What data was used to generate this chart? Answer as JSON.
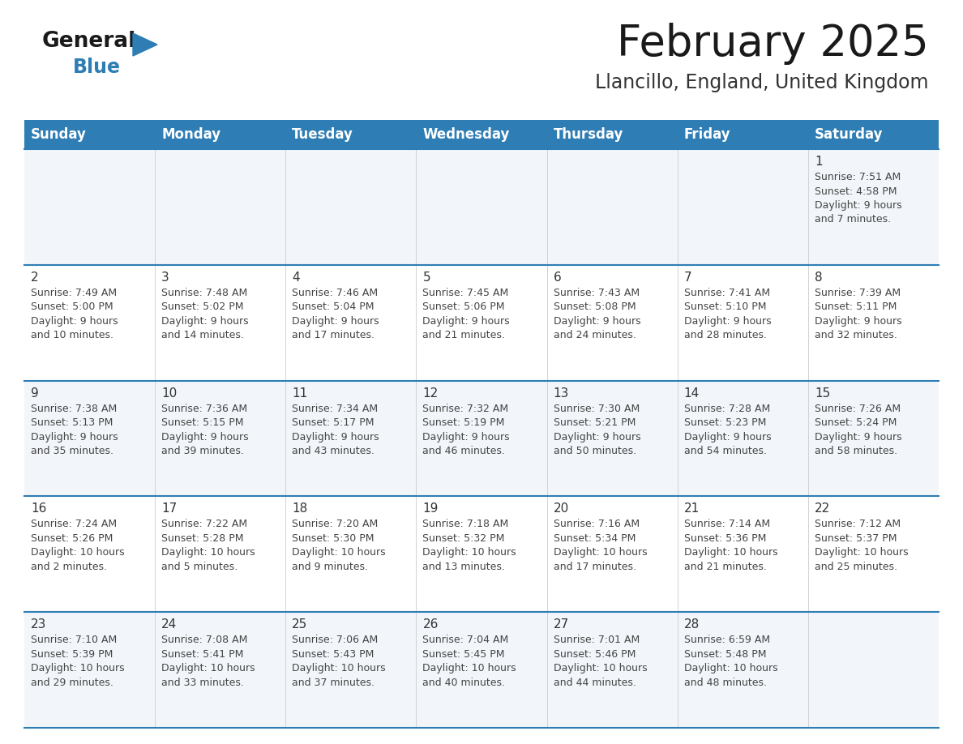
{
  "title": "February 2025",
  "subtitle": "Llancillo, England, United Kingdom",
  "days_of_week": [
    "Sunday",
    "Monday",
    "Tuesday",
    "Wednesday",
    "Thursday",
    "Friday",
    "Saturday"
  ],
  "header_bg": "#2e7db5",
  "header_text": "#ffffff",
  "bg_color": "#ffffff",
  "row_colors": [
    "#f2f6fa",
    "#ffffff",
    "#f2f6fa",
    "#ffffff",
    "#f2f6fa"
  ],
  "cell_text_color": "#444444",
  "day_num_color": "#333333",
  "separator_color": "#2e7db5",
  "calendar_data": [
    [
      {
        "day": null
      },
      {
        "day": null
      },
      {
        "day": null
      },
      {
        "day": null
      },
      {
        "day": null
      },
      {
        "day": null
      },
      {
        "day": 1,
        "sunrise": "7:51 AM",
        "sunset": "4:58 PM",
        "daylight": "9 hours and 7 minutes."
      }
    ],
    [
      {
        "day": 2,
        "sunrise": "7:49 AM",
        "sunset": "5:00 PM",
        "daylight": "9 hours and 10 minutes."
      },
      {
        "day": 3,
        "sunrise": "7:48 AM",
        "sunset": "5:02 PM",
        "daylight": "9 hours and 14 minutes."
      },
      {
        "day": 4,
        "sunrise": "7:46 AM",
        "sunset": "5:04 PM",
        "daylight": "9 hours and 17 minutes."
      },
      {
        "day": 5,
        "sunrise": "7:45 AM",
        "sunset": "5:06 PM",
        "daylight": "9 hours and 21 minutes."
      },
      {
        "day": 6,
        "sunrise": "7:43 AM",
        "sunset": "5:08 PM",
        "daylight": "9 hours and 24 minutes."
      },
      {
        "day": 7,
        "sunrise": "7:41 AM",
        "sunset": "5:10 PM",
        "daylight": "9 hours and 28 minutes."
      },
      {
        "day": 8,
        "sunrise": "7:39 AM",
        "sunset": "5:11 PM",
        "daylight": "9 hours and 32 minutes."
      }
    ],
    [
      {
        "day": 9,
        "sunrise": "7:38 AM",
        "sunset": "5:13 PM",
        "daylight": "9 hours and 35 minutes."
      },
      {
        "day": 10,
        "sunrise": "7:36 AM",
        "sunset": "5:15 PM",
        "daylight": "9 hours and 39 minutes."
      },
      {
        "day": 11,
        "sunrise": "7:34 AM",
        "sunset": "5:17 PM",
        "daylight": "9 hours and 43 minutes."
      },
      {
        "day": 12,
        "sunrise": "7:32 AM",
        "sunset": "5:19 PM",
        "daylight": "9 hours and 46 minutes."
      },
      {
        "day": 13,
        "sunrise": "7:30 AM",
        "sunset": "5:21 PM",
        "daylight": "9 hours and 50 minutes."
      },
      {
        "day": 14,
        "sunrise": "7:28 AM",
        "sunset": "5:23 PM",
        "daylight": "9 hours and 54 minutes."
      },
      {
        "day": 15,
        "sunrise": "7:26 AM",
        "sunset": "5:24 PM",
        "daylight": "9 hours and 58 minutes."
      }
    ],
    [
      {
        "day": 16,
        "sunrise": "7:24 AM",
        "sunset": "5:26 PM",
        "daylight": "10 hours and 2 minutes."
      },
      {
        "day": 17,
        "sunrise": "7:22 AM",
        "sunset": "5:28 PM",
        "daylight": "10 hours and 5 minutes."
      },
      {
        "day": 18,
        "sunrise": "7:20 AM",
        "sunset": "5:30 PM",
        "daylight": "10 hours and 9 minutes."
      },
      {
        "day": 19,
        "sunrise": "7:18 AM",
        "sunset": "5:32 PM",
        "daylight": "10 hours and 13 minutes."
      },
      {
        "day": 20,
        "sunrise": "7:16 AM",
        "sunset": "5:34 PM",
        "daylight": "10 hours and 17 minutes."
      },
      {
        "day": 21,
        "sunrise": "7:14 AM",
        "sunset": "5:36 PM",
        "daylight": "10 hours and 21 minutes."
      },
      {
        "day": 22,
        "sunrise": "7:12 AM",
        "sunset": "5:37 PM",
        "daylight": "10 hours and 25 minutes."
      }
    ],
    [
      {
        "day": 23,
        "sunrise": "7:10 AM",
        "sunset": "5:39 PM",
        "daylight": "10 hours and 29 minutes."
      },
      {
        "day": 24,
        "sunrise": "7:08 AM",
        "sunset": "5:41 PM",
        "daylight": "10 hours and 33 minutes."
      },
      {
        "day": 25,
        "sunrise": "7:06 AM",
        "sunset": "5:43 PM",
        "daylight": "10 hours and 37 minutes."
      },
      {
        "day": 26,
        "sunrise": "7:04 AM",
        "sunset": "5:45 PM",
        "daylight": "10 hours and 40 minutes."
      },
      {
        "day": 27,
        "sunrise": "7:01 AM",
        "sunset": "5:46 PM",
        "daylight": "10 hours and 44 minutes."
      },
      {
        "day": 28,
        "sunrise": "6:59 AM",
        "sunset": "5:48 PM",
        "daylight": "10 hours and 48 minutes."
      },
      {
        "day": null
      }
    ]
  ]
}
